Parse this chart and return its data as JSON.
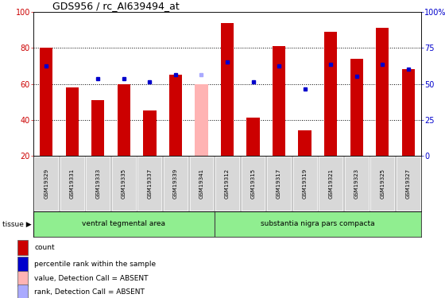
{
  "title": "GDS956 / rc_AI639494_at",
  "samples": [
    "GSM19329",
    "GSM19331",
    "GSM19333",
    "GSM19335",
    "GSM19337",
    "GSM19339",
    "GSM19341",
    "GSM19312",
    "GSM19315",
    "GSM19317",
    "GSM19319",
    "GSM19321",
    "GSM19323",
    "GSM19325",
    "GSM19327"
  ],
  "bar_values": [
    80,
    58,
    51,
    60,
    45,
    65,
    60,
    94,
    41,
    81,
    34,
    89,
    74,
    91,
    68
  ],
  "bar_colors": [
    "#cc0000",
    "#cc0000",
    "#cc0000",
    "#cc0000",
    "#cc0000",
    "#cc0000",
    "#ffb3b3",
    "#cc0000",
    "#cc0000",
    "#cc0000",
    "#cc0000",
    "#cc0000",
    "#cc0000",
    "#cc0000",
    "#cc0000"
  ],
  "rank_values": [
    70,
    null,
    63,
    63,
    61,
    65,
    65,
    72,
    61,
    70,
    57,
    71,
    64,
    71,
    68
  ],
  "rank_colors": [
    "#0000cc",
    "#0000cc",
    "#0000cc",
    "#0000cc",
    "#0000cc",
    "#0000cc",
    "#aaaaff",
    "#0000cc",
    "#0000cc",
    "#0000cc",
    "#0000cc",
    "#0000cc",
    "#0000cc",
    "#0000cc",
    "#0000cc"
  ],
  "groups": [
    {
      "label": "ventral tegmental area",
      "start": 0,
      "end": 7
    },
    {
      "label": "substantia nigra pars compacta",
      "start": 7,
      "end": 15
    }
  ],
  "ylim_left": [
    20,
    100
  ],
  "left_ticks": [
    20,
    40,
    60,
    80,
    100
  ],
  "right_ticks": [
    0,
    25,
    50,
    75,
    100
  ],
  "right_tick_labels": [
    "0",
    "25",
    "50",
    "75",
    "100%"
  ],
  "dotted_lines": [
    40,
    60,
    80
  ],
  "legend_items": [
    {
      "label": "count",
      "color": "#cc0000"
    },
    {
      "label": "percentile rank within the sample",
      "color": "#0000cc"
    },
    {
      "label": "value, Detection Call = ABSENT",
      "color": "#ffb3b3"
    },
    {
      "label": "rank, Detection Call = ABSENT",
      "color": "#aaaaff"
    }
  ],
  "left_tick_color": "#cc0000",
  "right_tick_color": "#0000cc",
  "bg_color": "#ffffff",
  "cell_bg": "#d8d8d8",
  "tissue_bg": "#90ee90",
  "tissue_label": "tissue ▶"
}
